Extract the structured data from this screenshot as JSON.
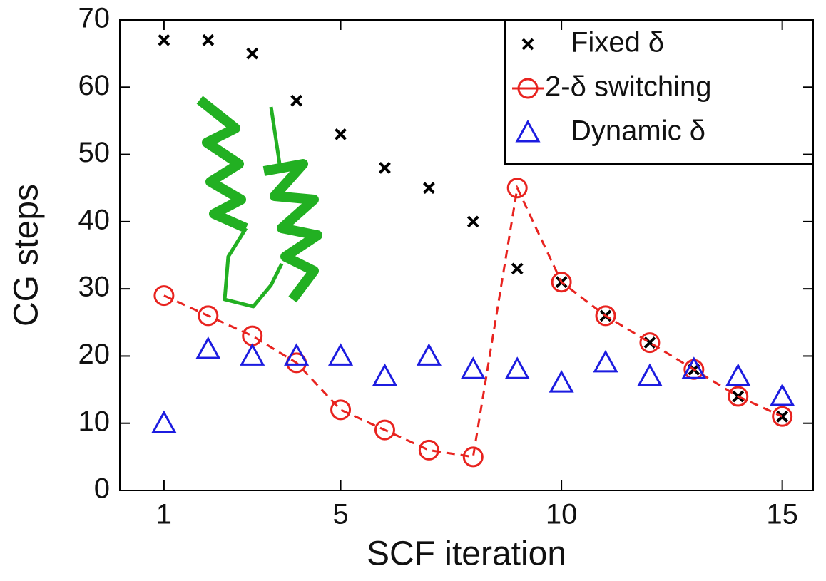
{
  "chart_data": {
    "type": "scatter",
    "x_label": "SCF iteration",
    "y_label": "CG steps",
    "x": [
      1,
      2,
      3,
      4,
      5,
      6,
      7,
      8,
      9,
      10,
      11,
      12,
      13,
      14,
      15
    ],
    "xlim": [
      0,
      15.7
    ],
    "ylim": [
      0,
      70
    ],
    "xticks": [
      1,
      5,
      10,
      15
    ],
    "yticks": [
      0,
      10,
      20,
      30,
      40,
      50,
      60,
      70
    ],
    "legend": "upper right",
    "series": [
      {
        "name": "Fixed δ",
        "color": "#000000",
        "marker": "x",
        "line": false,
        "values": [
          67,
          67,
          65,
          58,
          53,
          48,
          45,
          40,
          33,
          31,
          26,
          22,
          18,
          14,
          11
        ]
      },
      {
        "name": "2-δ switching",
        "color": "#e8231f",
        "marker": "circle",
        "line": "dashed",
        "values": [
          29,
          26,
          23,
          19,
          12,
          9,
          6,
          5,
          45,
          31,
          26,
          22,
          18,
          14,
          11
        ]
      },
      {
        "name": "Dynamic δ",
        "color": "#1c1ce0",
        "marker": "triangle",
        "line": false,
        "values": [
          10,
          21,
          20,
          20,
          20,
          17,
          20,
          18,
          18,
          16,
          19,
          17,
          18,
          17,
          14
        ]
      }
    ]
  }
}
